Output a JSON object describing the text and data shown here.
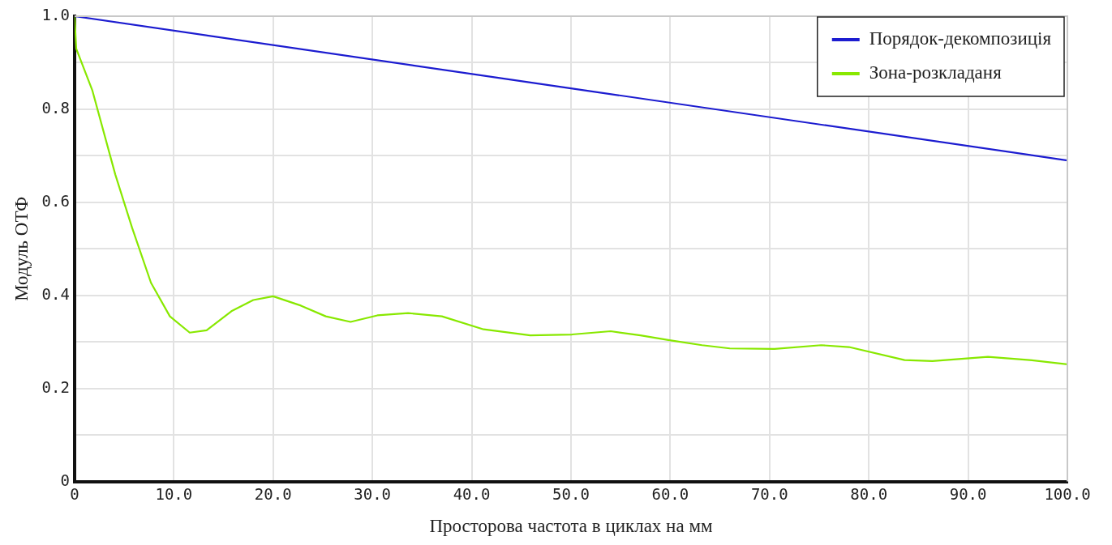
{
  "chart_data": {
    "type": "line",
    "xlabel": "Просторова частота в циклах на мм",
    "ylabel": "Модуль ОТФ",
    "xlim": [
      0,
      100
    ],
    "xticks": [
      {
        "value": 0,
        "label": "0"
      },
      {
        "value": 10,
        "label": "10.0"
      },
      {
        "value": 20,
        "label": "20.0"
      },
      {
        "value": 30,
        "label": "30.0"
      },
      {
        "value": 40,
        "label": "40.0"
      },
      {
        "value": 50,
        "label": "50.0"
      },
      {
        "value": 60,
        "label": "60.0"
      },
      {
        "value": 70,
        "label": "70.0"
      },
      {
        "value": 80,
        "label": "80.0"
      },
      {
        "value": 90,
        "label": "90.0"
      },
      {
        "value": 100,
        "label": "100.0"
      }
    ],
    "ylim": [
      0,
      1
    ],
    "yticks": [
      0,
      {
        "value": 0.1,
        "label": null
      },
      {
        "value": 0.2,
        "label": "0.2"
      },
      {
        "value": 0.3,
        "label": null
      },
      {
        "value": 0.4,
        "label": "0.4"
      },
      {
        "value": 0.5,
        "label": null
      },
      {
        "value": 0.6,
        "label": "0.6"
      },
      {
        "value": 0.7,
        "label": null
      },
      {
        "value": 0.8,
        "label": "0.8"
      },
      {
        "value": 0.9,
        "label": null
      },
      {
        "value": 1,
        "label": "1.0"
      }
    ],
    "grid": true,
    "legend": "top right",
    "marker": "none",
    "line_style": "solid",
    "series": [
      {
        "name": "Порядок-декомпозиція",
        "color": "#1c1cd0",
        "x": [
          0,
          50,
          100
        ],
        "values": [
          1.0,
          0.845,
          0.69
        ]
      },
      {
        "name": "Зона-розкладаня",
        "color": "#88e800",
        "x": [
          0,
          0.17,
          1.8,
          4.1,
          5.8,
          7.7,
          9.6,
          11.6,
          13.3,
          15.8,
          18,
          20,
          22.8,
          25.3,
          27.8,
          30.5,
          33.6,
          37,
          41.2,
          45.9,
          50.1,
          54,
          57,
          59.8,
          63.2,
          66,
          70.5,
          75.2,
          78,
          83.6,
          86.4,
          92,
          96.2,
          100
        ],
        "values": [
          1.0,
          0.93,
          0.84,
          0.66,
          0.545,
          0.427,
          0.355,
          0.32,
          0.325,
          0.366,
          0.39,
          0.398,
          0.378,
          0.355,
          0.343,
          0.357,
          0.362,
          0.355,
          0.327,
          0.314,
          0.316,
          0.323,
          0.314,
          0.304,
          0.293,
          0.286,
          0.285,
          0.293,
          0.289,
          0.261,
          0.259,
          0.268,
          0.261,
          0.252
        ]
      }
    ]
  }
}
